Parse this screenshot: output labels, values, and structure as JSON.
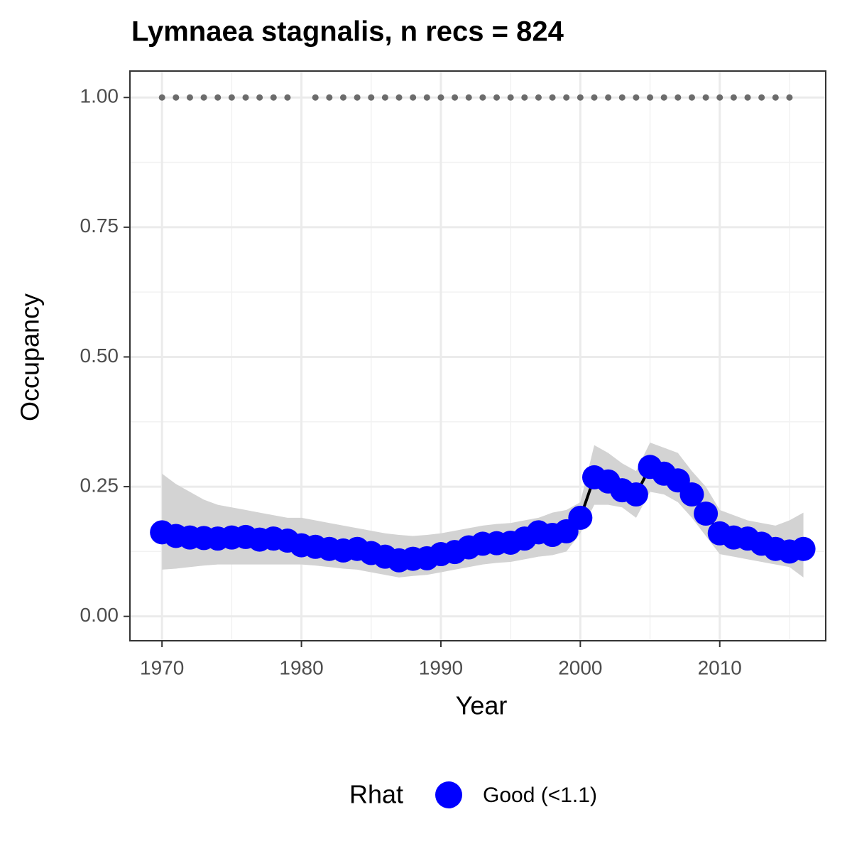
{
  "chart_data": {
    "type": "line",
    "title": "Lymnaea stagnalis, n recs = 824",
    "x_label": "Year",
    "y_label": "Occupancy",
    "legend_title": "Rhat",
    "x": [
      1970,
      1971,
      1972,
      1973,
      1974,
      1975,
      1976,
      1977,
      1978,
      1979,
      1980,
      1981,
      1982,
      1983,
      1984,
      1985,
      1986,
      1987,
      1988,
      1989,
      1990,
      1991,
      1992,
      1993,
      1994,
      1995,
      1996,
      1997,
      1998,
      1999,
      2000,
      2001,
      2002,
      2003,
      2004,
      2005,
      2006,
      2007,
      2008,
      2009,
      2010,
      2011,
      2012,
      2013,
      2014,
      2015,
      2016
    ],
    "series": [
      {
        "name": "Good (<1.1)",
        "color": "#0000ff",
        "line_color": "#000000",
        "values": [
          0.162,
          0.155,
          0.152,
          0.151,
          0.15,
          0.152,
          0.153,
          0.148,
          0.15,
          0.146,
          0.137,
          0.134,
          0.13,
          0.127,
          0.13,
          0.122,
          0.115,
          0.108,
          0.111,
          0.112,
          0.12,
          0.124,
          0.133,
          0.14,
          0.141,
          0.142,
          0.15,
          0.162,
          0.157,
          0.164,
          0.19,
          0.268,
          0.26,
          0.243,
          0.235,
          0.288,
          0.275,
          0.262,
          0.235,
          0.198,
          0.16,
          0.152,
          0.15,
          0.14,
          0.13,
          0.125,
          0.13
        ],
        "lower": [
          0.09,
          0.092,
          0.095,
          0.098,
          0.1,
          0.1,
          0.1,
          0.1,
          0.1,
          0.1,
          0.1,
          0.098,
          0.095,
          0.092,
          0.09,
          0.085,
          0.08,
          0.075,
          0.078,
          0.08,
          0.085,
          0.09,
          0.095,
          0.1,
          0.103,
          0.105,
          0.11,
          0.115,
          0.118,
          0.125,
          0.16,
          0.215,
          0.215,
          0.21,
          0.19,
          0.24,
          0.235,
          0.22,
          0.19,
          0.155,
          0.12,
          0.115,
          0.11,
          0.105,
          0.1,
          0.095,
          0.075
        ],
        "upper": [
          0.275,
          0.255,
          0.24,
          0.225,
          0.215,
          0.21,
          0.205,
          0.2,
          0.195,
          0.19,
          0.19,
          0.185,
          0.18,
          0.175,
          0.17,
          0.165,
          0.16,
          0.157,
          0.155,
          0.157,
          0.16,
          0.165,
          0.17,
          0.175,
          0.178,
          0.18,
          0.185,
          0.19,
          0.2,
          0.205,
          0.22,
          0.33,
          0.315,
          0.295,
          0.28,
          0.335,
          0.325,
          0.315,
          0.28,
          0.25,
          0.205,
          0.195,
          0.185,
          0.18,
          0.175,
          0.185,
          0.2
        ],
        "ribbon_color": "#d3d3d3"
      }
    ],
    "detections": {
      "color": "#6b6b6b",
      "x": [
        1970,
        1971,
        1972,
        1973,
        1974,
        1975,
        1976,
        1977,
        1978,
        1979,
        1981,
        1982,
        1983,
        1984,
        1985,
        1986,
        1987,
        1988,
        1989,
        1990,
        1991,
        1992,
        1993,
        1994,
        1995,
        1996,
        1997,
        1998,
        1999,
        2000,
        2001,
        2002,
        2003,
        2004,
        2005,
        2006,
        2007,
        2008,
        2009,
        2010,
        2011,
        2012,
        2013,
        2014,
        2015
      ],
      "values": [
        1,
        1,
        1,
        1,
        1,
        1,
        1,
        1,
        1,
        1,
        1,
        1,
        1,
        1,
        1,
        1,
        1,
        1,
        1,
        1,
        1,
        1,
        1,
        1,
        1,
        1,
        1,
        1,
        1,
        1,
        1,
        1,
        1,
        1,
        1,
        1,
        1,
        1,
        1,
        1,
        1,
        1,
        1,
        1,
        1
      ]
    },
    "xlim": [
      1967.7,
      2017.6
    ],
    "ylim": [
      -0.047,
      1.051
    ],
    "xticks": [
      1970,
      1980,
      1990,
      2000,
      2010
    ],
    "yticks": [
      {
        "value": 0,
        "label": "0.00"
      },
      {
        "value": 0.25,
        "label": "0.25"
      },
      {
        "value": 0.5,
        "label": "0.50"
      },
      {
        "value": 0.75,
        "label": "0.75"
      },
      {
        "value": 1,
        "label": "1.00"
      }
    ],
    "xminor": [
      1975,
      1985,
      1995,
      2005,
      2015
    ],
    "yminor": [
      0.125,
      0.375,
      0.625,
      0.875
    ],
    "grid": true
  }
}
